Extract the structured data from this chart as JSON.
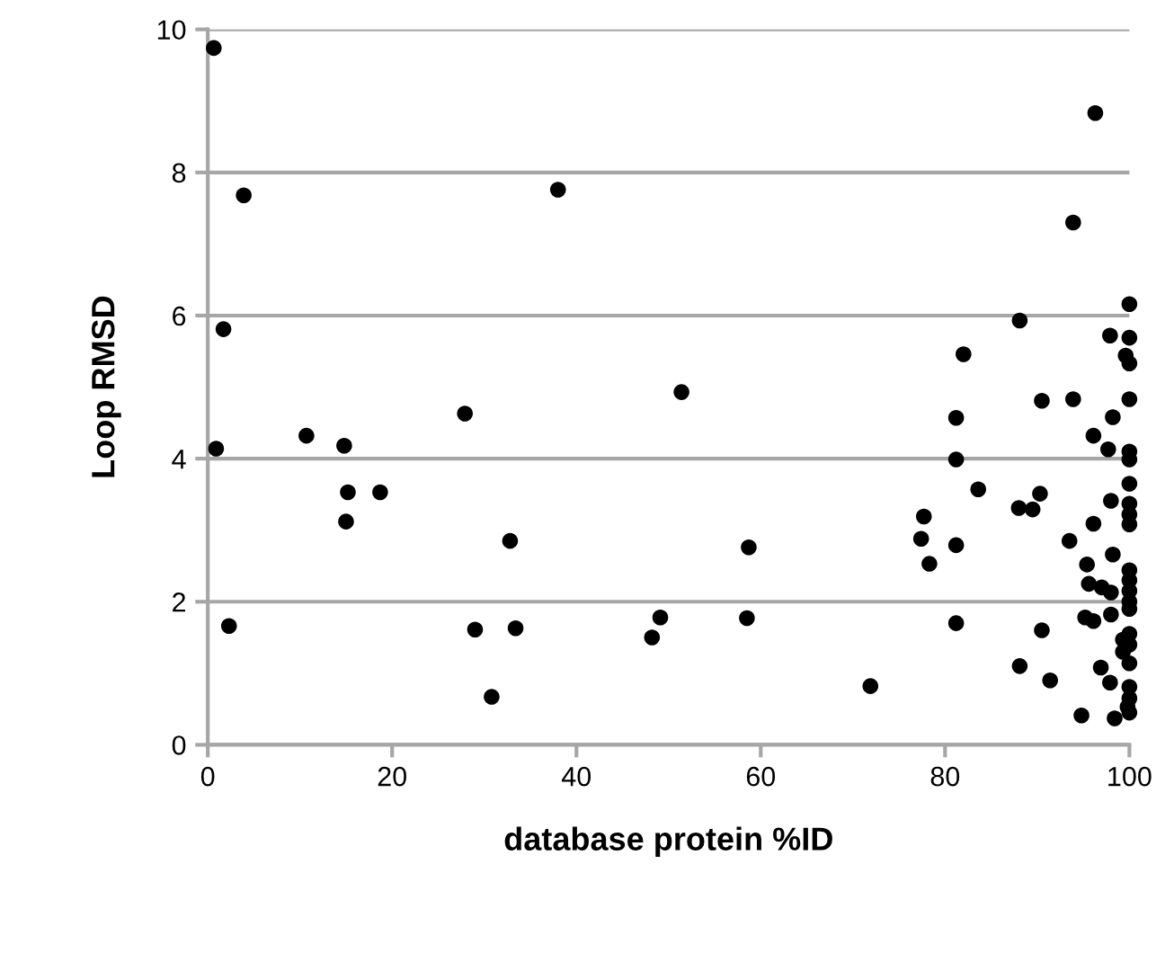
{
  "chart_data": {
    "type": "scatter",
    "xlabel": "database protein %ID",
    "ylabel": "Loop RMSD",
    "xlim": [
      0,
      100
    ],
    "ylim": [
      0,
      10
    ],
    "xticks": [
      0,
      20,
      40,
      60,
      80,
      100
    ],
    "yticks": [
      0,
      2,
      4,
      6,
      8,
      10
    ],
    "grid": "y",
    "marker": "circle",
    "series": [
      {
        "color": "#000000",
        "x": [
          0.65,
          3.9,
          38.0,
          1.7,
          51.4,
          27.9,
          10.7,
          0.9,
          14.8,
          15.2,
          18.7,
          15.0,
          32.8,
          2.3,
          29.0,
          33.4,
          30.8,
          49.1,
          48.2,
          96.3,
          93.9,
          100,
          88.1,
          82.0,
          97.9,
          100,
          99.6,
          100,
          81.2,
          90.5,
          93.9,
          100,
          98.2,
          96.1,
          97.7,
          100,
          100,
          81.2,
          83.6,
          100,
          88.0,
          89.5,
          90.3,
          98.0,
          100,
          100,
          100,
          77.7,
          77.4,
          78.3,
          81.2,
          58.7,
          93.5,
          96.1,
          98.2,
          95.4,
          100,
          100,
          100,
          100,
          100,
          95.6,
          97.0,
          98.0,
          58.5,
          81.2,
          90.5,
          95.2,
          96.1,
          98.0,
          100,
          100,
          100,
          99.3,
          99.3,
          71.9,
          88.1,
          91.4,
          96.9,
          97.9,
          100,
          100,
          100,
          94.8,
          98.4,
          99.8
        ],
        "values": [
          9.74,
          7.68,
          7.76,
          5.81,
          4.93,
          4.63,
          4.32,
          4.14,
          4.18,
          3.53,
          3.53,
          3.12,
          2.85,
          1.66,
          1.61,
          1.63,
          0.67,
          1.78,
          1.5,
          8.83,
          7.3,
          6.16,
          5.93,
          5.46,
          5.72,
          5.69,
          5.44,
          5.33,
          4.57,
          4.81,
          4.83,
          4.83,
          4.58,
          4.32,
          4.13,
          4.1,
          3.99,
          3.99,
          3.57,
          3.65,
          3.31,
          3.29,
          3.51,
          3.41,
          3.37,
          3.22,
          3.08,
          3.19,
          2.88,
          2.53,
          2.79,
          2.76,
          2.85,
          3.09,
          2.66,
          2.52,
          2.44,
          2.3,
          2.15,
          2.0,
          1.9,
          2.25,
          2.2,
          2.13,
          1.77,
          1.7,
          1.6,
          1.78,
          1.73,
          1.82,
          1.55,
          1.4,
          1.14,
          1.47,
          1.3,
          0.82,
          1.1,
          0.9,
          1.08,
          0.87,
          0.81,
          0.65,
          0.45,
          0.41,
          0.37,
          0.53
        ]
      }
    ]
  }
}
